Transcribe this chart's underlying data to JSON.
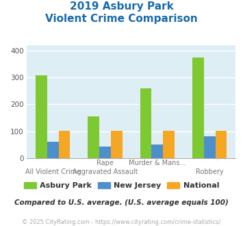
{
  "title_line1": "2019 Asbury Park",
  "title_line2": "Violent Crime Comparison",
  "cat_top": [
    "",
    "Rape",
    "Murder & Mans...",
    ""
  ],
  "cat_bot": [
    "All Violent Crime",
    "Aggravated Assault",
    "",
    "Robbery"
  ],
  "asbury_park": [
    308,
    155,
    260,
    375
  ],
  "new_jersey": [
    60,
    43,
    52,
    82
  ],
  "national": [
    102,
    103,
    102,
    102
  ],
  "color_asbury": "#7ec832",
  "color_nj": "#4d8fcc",
  "color_national": "#f5a623",
  "ylim": [
    0,
    420
  ],
  "yticks": [
    0,
    100,
    200,
    300,
    400
  ],
  "legend_labels": [
    "Asbury Park",
    "New Jersey",
    "National"
  ],
  "footnote": "Compared to U.S. average. (U.S. average equals 100)",
  "copyright": "© 2025 CityRating.com - https://www.cityrating.com/crime-statistics/",
  "bg_color": "#deeef5",
  "title_color": "#1a6aab",
  "footnote_color": "#333333",
  "copyright_color": "#aaaaaa",
  "grid_color": "#ffffff",
  "bar_width": 0.22
}
